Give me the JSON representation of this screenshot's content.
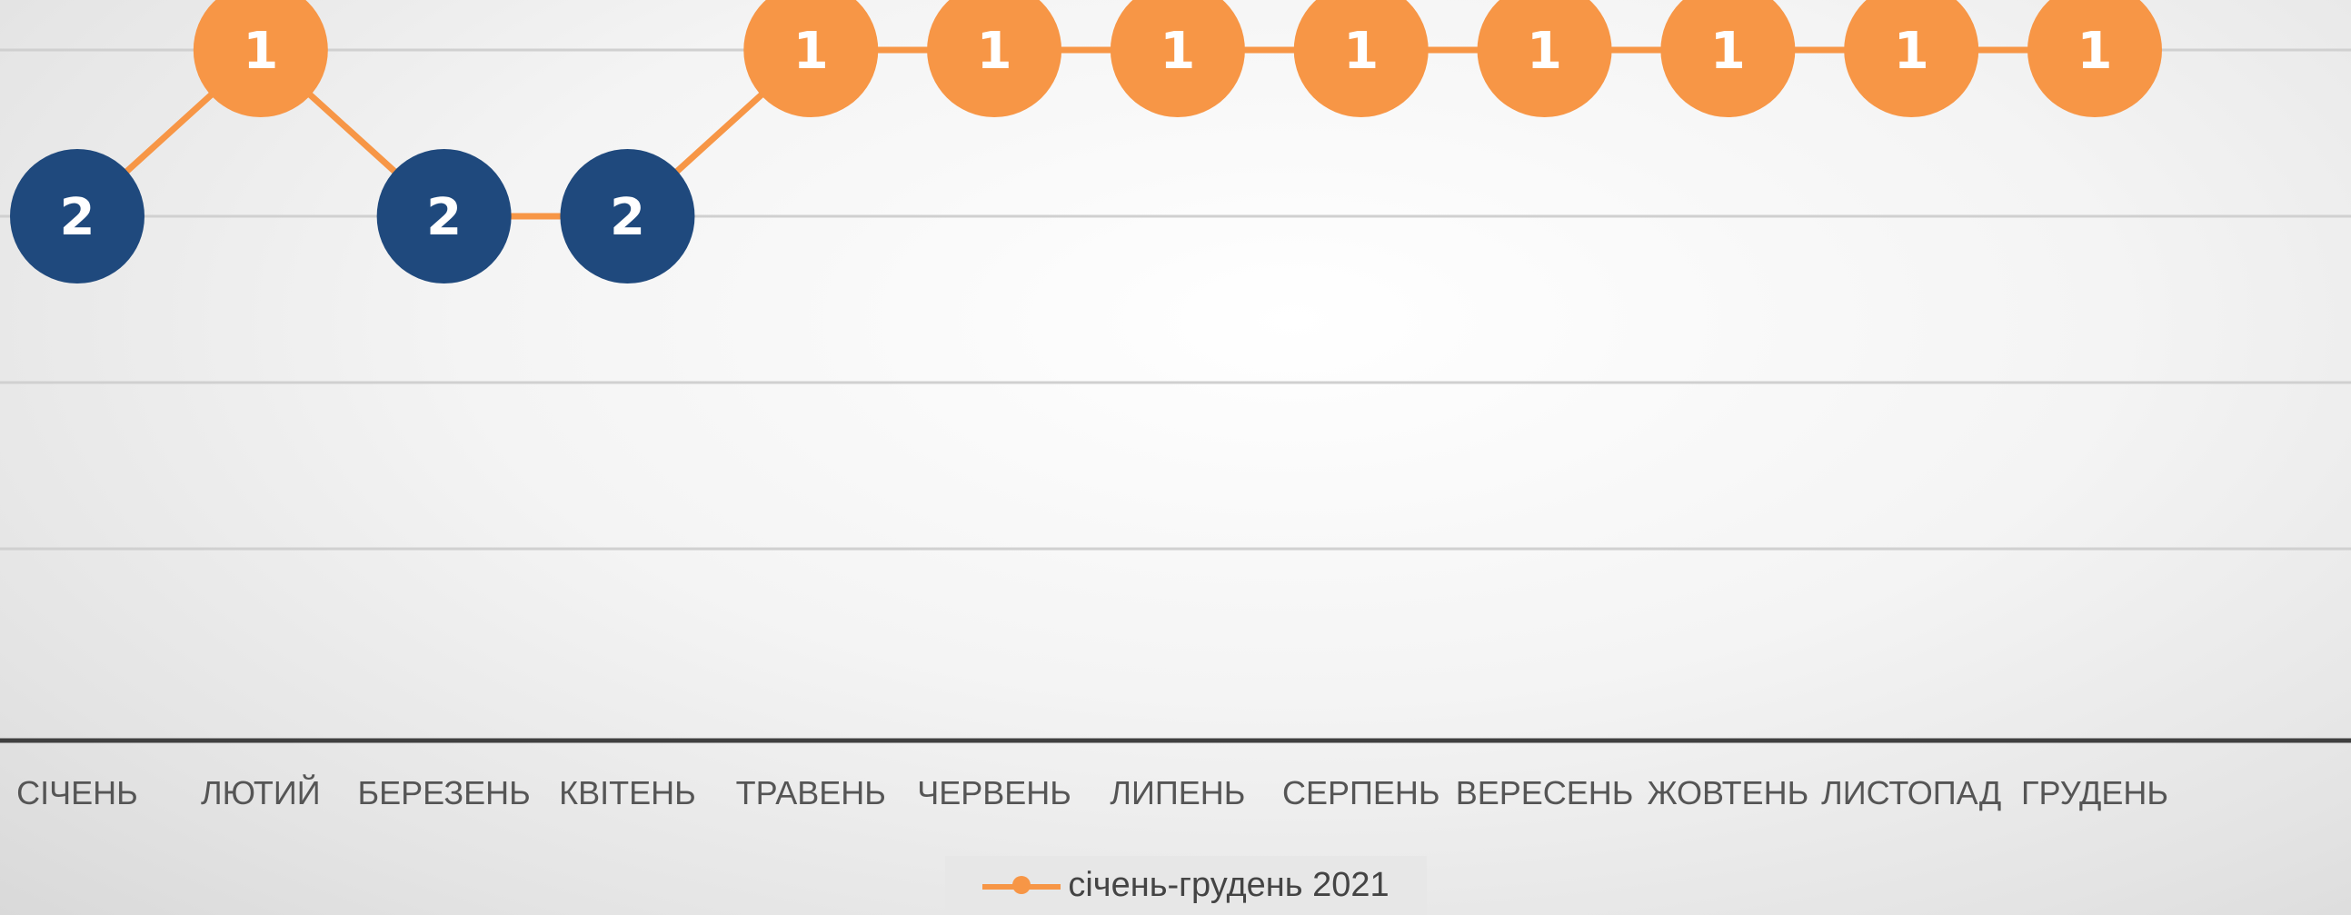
{
  "chart_data": {
    "type": "line",
    "categories": [
      "СІЧЕНЬ",
      "ЛЮТИЙ",
      "БЕРЕЗЕНЬ",
      "КВІТЕНЬ",
      "ТРАВЕНЬ",
      "ЧЕРВЕНЬ",
      "ЛИПЕНЬ",
      "СЕРПЕНЬ",
      "ВЕРЕСЕНЬ",
      "ЖОВТЕНЬ",
      "ЛИСТОПАД",
      "ГРУДЕНЬ"
    ],
    "series": [
      {
        "name": "січень-грудень 2021",
        "values": [
          2,
          1,
          2,
          2,
          1,
          1,
          1,
          1,
          1,
          1,
          1,
          1
        ]
      }
    ],
    "y_reversed": true,
    "ylim": [
      1,
      4
    ],
    "grid": true,
    "legend": "bottom-center",
    "data_labels": true
  },
  "colors": {
    "line": "#F79646",
    "marker_orange": "#F79646",
    "marker_blue": "#1F497D",
    "gridline": "#d0d0d0",
    "axis": "#404040"
  }
}
